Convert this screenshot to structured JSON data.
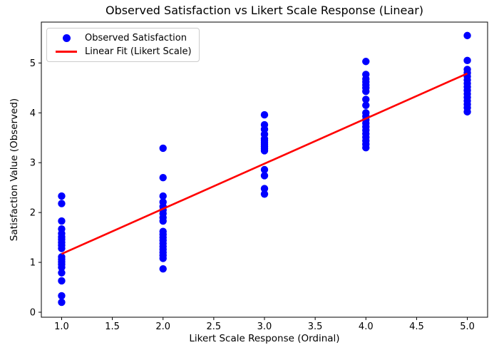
{
  "chart_data": {
    "type": "scatter",
    "title": "Observed Satisfaction vs Likert Scale Response (Linear)",
    "xlabel": "Likert Scale Response (Ordinal)",
    "ylabel": "Satisfaction Value (Observed)",
    "xlim": [
      0.8,
      5.2
    ],
    "ylim": [
      -0.1,
      5.82
    ],
    "grid": false,
    "legend_position": "upper-left",
    "x_tick_values": [
      1.0,
      1.5,
      2.0,
      2.5,
      3.0,
      3.5,
      4.0,
      4.5,
      5.0
    ],
    "x_tick_labels": [
      "1.0",
      "1.5",
      "2.0",
      "2.5",
      "3.0",
      "3.5",
      "4.0",
      "4.5",
      "5.0"
    ],
    "y_tick_values": [
      0,
      1,
      2,
      3,
      4,
      5
    ],
    "y_tick_labels": [
      "0",
      "1",
      "2",
      "3",
      "4",
      "5"
    ],
    "series": [
      {
        "name": "Observed Satisfaction",
        "kind": "scatter",
        "color": "#0000ff",
        "marker": "circle",
        "points_by_level": [
          {
            "likert": 1,
            "values": [
              2.33,
              2.18,
              1.83,
              1.67,
              1.58,
              1.51,
              1.46,
              1.4,
              1.34,
              1.28,
              1.11,
              1.06,
              1.01,
              0.96,
              0.9,
              0.79,
              0.63,
              0.33,
              0.2
            ]
          },
          {
            "likert": 2,
            "values": [
              3.29,
              2.7,
              2.33,
              2.21,
              2.12,
              2.05,
              1.98,
              1.9,
              1.83,
              1.62,
              1.56,
              1.5,
              1.44,
              1.38,
              1.32,
              1.26,
              1.2,
              1.14,
              1.08,
              0.87
            ]
          },
          {
            "likert": 3,
            "values": [
              3.96,
              3.76,
              3.67,
              3.57,
              3.48,
              3.44,
              3.4,
              3.36,
              3.32,
              3.28,
              3.24,
              2.86,
              2.74,
              2.48,
              2.37
            ]
          },
          {
            "likert": 4,
            "values": [
              5.03,
              4.77,
              4.68,
              4.62,
              4.56,
              4.5,
              4.43,
              4.27,
              4.15,
              4.0,
              3.93,
              3.86,
              3.79,
              3.72,
              3.65,
              3.58,
              3.51,
              3.44,
              3.37,
              3.3
            ]
          },
          {
            "likert": 5,
            "values": [
              5.55,
              5.05,
              4.87,
              4.8,
              4.73,
              4.66,
              4.59,
              4.52,
              4.45,
              4.38,
              4.31,
              4.24,
              4.17,
              4.1,
              4.02
            ]
          }
        ]
      },
      {
        "name": "Linear Fit (Likert Scale)",
        "kind": "line",
        "color": "#ff0000",
        "endpoints": [
          [
            1.0,
            1.17
          ],
          [
            5.0,
            4.79
          ]
        ]
      }
    ]
  }
}
